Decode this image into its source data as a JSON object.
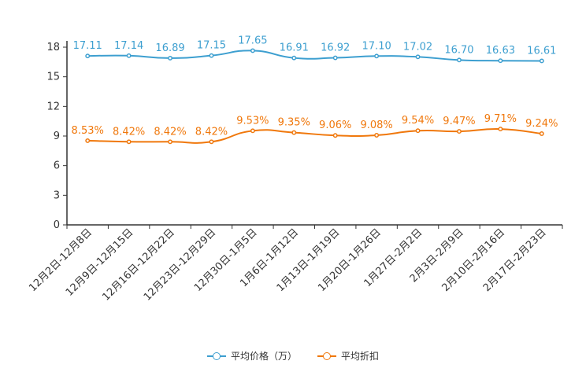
{
  "chart_data": {
    "type": "line",
    "categories": [
      "12月2日-12月8日",
      "12月9日-12月15日",
      "12月16日-12月22日",
      "12月23日-12月29日",
      "12月30日-1月5日",
      "1月6日-1月12日",
      "1月13日-1月19日",
      "1月20日-1月26日",
      "1月27日-2月2日",
      "2月3日-2月9日",
      "2月10日-2月16日",
      "2月17日-2月23日"
    ],
    "y_ticks": [
      "0",
      "3",
      "6",
      "9",
      "12",
      "15",
      "18"
    ],
    "ylim": [
      0,
      18
    ],
    "series": [
      {
        "name": "平均价格（万）",
        "color": "#3d9fd0",
        "values": [
          17.11,
          17.14,
          16.89,
          17.15,
          17.65,
          16.91,
          16.92,
          17.1,
          17.02,
          16.7,
          16.63,
          16.61
        ],
        "labels": [
          "17.11",
          "17.14",
          "16.89",
          "17.15",
          "17.65",
          "16.91",
          "16.92",
          "17.10",
          "17.02",
          "16.70",
          "16.63",
          "16.61"
        ]
      },
      {
        "name": "平均折扣",
        "color": "#f0780c",
        "values": [
          8.53,
          8.42,
          8.42,
          8.42,
          9.53,
          9.35,
          9.06,
          9.08,
          9.54,
          9.47,
          9.71,
          9.24
        ],
        "labels": [
          "8.53%",
          "8.42%",
          "8.42%",
          "8.42%",
          "9.53%",
          "9.35%",
          "9.06%",
          "9.08%",
          "9.54%",
          "9.47%",
          "9.71%",
          "9.24%"
        ]
      }
    ]
  }
}
